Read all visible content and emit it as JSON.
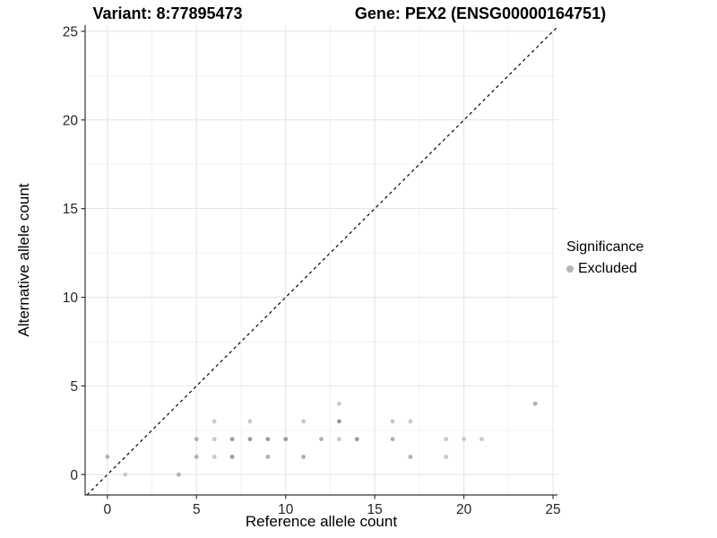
{
  "header": {
    "variant_title": "Variant: 8:77895473",
    "gene_title": "Gene: PEX2 (ENSG00000164751)"
  },
  "legend": {
    "title": "Significance",
    "items": [
      {
        "label": "Excluded",
        "color": "#b5b5b5"
      }
    ]
  },
  "chart_data": {
    "type": "scatter",
    "title": "Variant: 8:77895473 | Gene: PEX2 (ENSG00000164751)",
    "xlabel": "Reference allele count",
    "ylabel": "Alternative allele count",
    "xlim": [
      -1.25,
      25.25
    ],
    "ylim": [
      -1.15,
      25.35
    ],
    "x_ticks": [
      0,
      5,
      10,
      15,
      20,
      25
    ],
    "y_ticks": [
      0,
      5,
      10,
      15,
      20,
      25
    ],
    "x_minor_gridlines": [
      2.5,
      7.5,
      12.5,
      17.5,
      22.5
    ],
    "y_minor_gridlines": [
      2.5,
      7.5,
      12.5,
      17.5,
      22.5
    ],
    "grid": true,
    "legend_position": "right",
    "identity_line": {
      "type": "y=x",
      "style": "dashed",
      "color": "#000000"
    },
    "shade_colors": {
      "l": "#c9c9c9",
      "m": "#afafaf",
      "d": "#999999"
    },
    "series": [
      {
        "name": "Excluded",
        "color": "#b5b5b5",
        "points": [
          {
            "x": 1,
            "y": 0,
            "shade": "l"
          },
          {
            "x": 4,
            "y": 0,
            "shade": "m"
          },
          {
            "x": 0,
            "y": 1,
            "shade": "m"
          },
          {
            "x": 5,
            "y": 1,
            "shade": "m"
          },
          {
            "x": 6,
            "y": 1,
            "shade": "l"
          },
          {
            "x": 7,
            "y": 1,
            "shade": "d"
          },
          {
            "x": 9,
            "y": 1,
            "shade": "m"
          },
          {
            "x": 11,
            "y": 1,
            "shade": "m"
          },
          {
            "x": 17,
            "y": 1,
            "shade": "m"
          },
          {
            "x": 19,
            "y": 1,
            "shade": "l"
          },
          {
            "x": 5,
            "y": 2,
            "shade": "m"
          },
          {
            "x": 6,
            "y": 2,
            "shade": "l"
          },
          {
            "x": 7,
            "y": 2,
            "shade": "d"
          },
          {
            "x": 8,
            "y": 2,
            "shade": "d"
          },
          {
            "x": 9,
            "y": 2,
            "shade": "d"
          },
          {
            "x": 10,
            "y": 2,
            "shade": "d"
          },
          {
            "x": 12,
            "y": 2,
            "shade": "m"
          },
          {
            "x": 13,
            "y": 2,
            "shade": "l"
          },
          {
            "x": 14,
            "y": 2,
            "shade": "d"
          },
          {
            "x": 16,
            "y": 2,
            "shade": "m"
          },
          {
            "x": 19,
            "y": 2,
            "shade": "l"
          },
          {
            "x": 20,
            "y": 2,
            "shade": "l"
          },
          {
            "x": 21,
            "y": 2,
            "shade": "l"
          },
          {
            "x": 6,
            "y": 3,
            "shade": "l"
          },
          {
            "x": 8,
            "y": 3,
            "shade": "l"
          },
          {
            "x": 11,
            "y": 3,
            "shade": "l"
          },
          {
            "x": 13,
            "y": 3,
            "shade": "d"
          },
          {
            "x": 16,
            "y": 3,
            "shade": "l"
          },
          {
            "x": 17,
            "y": 3,
            "shade": "l"
          },
          {
            "x": 13,
            "y": 4,
            "shade": "l"
          },
          {
            "x": 24,
            "y": 4,
            "shade": "m"
          }
        ]
      }
    ]
  }
}
